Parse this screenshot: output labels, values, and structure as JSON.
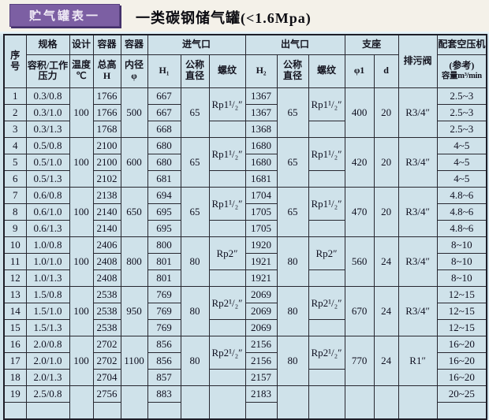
{
  "title_bar": {
    "badge": "贮气罐表一",
    "title": "一类碳钢储气罐(<1.6Mpa)"
  },
  "colors": {
    "badge_bg": "#7c5fa3",
    "badge_shadow": "#43306a",
    "title_band_bg": "#f4f1e9",
    "table_bg": "#cfe2ea",
    "grid_border": "#272730",
    "text": "#14141f"
  },
  "header": {
    "seq_l1": "序",
    "seq_l2": "号",
    "spec_group": "规格",
    "spec_sub": "容积/工作压力",
    "design_group": "设计",
    "design_sub_l1": "温度",
    "design_sub_l2": "℃",
    "vessel_height_group": "容器",
    "vessel_height_sub_l1": "总高",
    "vessel_height_sub_l2": "H",
    "vessel_dia_group": "容器",
    "vessel_dia_sub_l1": "内径",
    "vessel_dia_sub_l2": "φ",
    "inlet_group": "进气口",
    "outlet_group": "出气口",
    "support_group": "支座",
    "inlet_h1": "H₁",
    "outlet_h2": "H₂",
    "nominal_dia_l1": "公称",
    "nominal_dia_l2": "直径",
    "thread": "螺纹",
    "support_phi1": "φ1",
    "support_d": "d",
    "drain_valve": "排污阀",
    "compressor_l1": "配套空压机",
    "compressor_l2": "(参考)",
    "compressor_l3": "容量m³/min"
  },
  "table": {
    "rows": [
      {
        "cells": [
          {
            "v": "1",
            "n": "seq"
          },
          {
            "v": "0.3/0.8",
            "n": "spec"
          },
          {
            "v": "100",
            "rs": 3,
            "n": "design-temp"
          },
          {
            "v": "1766",
            "n": "total-height"
          },
          {
            "v": "500",
            "rs": 3,
            "n": "inner-dia"
          },
          {
            "v": "667",
            "n": "inlet-h1"
          },
          {
            "v": "65",
            "rs": 3,
            "n": "inlet-nominal-dia"
          },
          {
            "v": "Rp1¹/₂″",
            "rs": 2,
            "n": "inlet-thread"
          },
          {
            "v": "1367",
            "n": "outlet-h2"
          },
          {
            "v": "65",
            "rs": 3,
            "n": "outlet-nominal-dia"
          },
          {
            "v": "Rp1¹/₂″",
            "rs": 2,
            "n": "outlet-thread"
          },
          {
            "v": "400",
            "rs": 3,
            "n": "support-phi1"
          },
          {
            "v": "20",
            "rs": 3,
            "n": "support-d"
          },
          {
            "v": "R3/4″",
            "rs": 3,
            "n": "drain-valve"
          },
          {
            "v": "2.5~3",
            "n": "capacity"
          }
        ]
      },
      {
        "cells": [
          {
            "v": "2",
            "n": "seq"
          },
          {
            "v": "0.3/1.0",
            "n": "spec"
          },
          {
            "v": "1766",
            "n": "total-height"
          },
          {
            "v": "667",
            "n": "inlet-h1"
          },
          {
            "v": "1367",
            "n": "outlet-h2"
          },
          {
            "v": "2.5~3",
            "n": "capacity"
          }
        ]
      },
      {
        "cells": [
          {
            "v": "3",
            "n": "seq"
          },
          {
            "v": "0.3/1.3",
            "n": "spec"
          },
          {
            "v": "1768",
            "n": "total-height"
          },
          {
            "v": "668",
            "n": "inlet-h1"
          },
          {
            "v": "",
            "n": "inlet-thread"
          },
          {
            "v": "1368",
            "n": "outlet-h2"
          },
          {
            "v": "",
            "n": "outlet-thread"
          },
          {
            "v": "2.5~3",
            "n": "capacity"
          }
        ]
      },
      {
        "cells": [
          {
            "v": "4",
            "n": "seq"
          },
          {
            "v": "0.5/0.8",
            "n": "spec"
          },
          {
            "v": "100",
            "rs": 3,
            "n": "design-temp"
          },
          {
            "v": "2100",
            "n": "total-height"
          },
          {
            "v": "600",
            "rs": 3,
            "n": "inner-dia"
          },
          {
            "v": "680",
            "n": "inlet-h1"
          },
          {
            "v": "65",
            "rs": 3,
            "n": "inlet-nominal-dia"
          },
          {
            "v": "Rp1¹/₂″",
            "rs": 2,
            "n": "inlet-thread"
          },
          {
            "v": "1680",
            "n": "outlet-h2"
          },
          {
            "v": "65",
            "rs": 3,
            "n": "outlet-nominal-dia"
          },
          {
            "v": "Rp1¹/₂″",
            "rs": 2,
            "n": "outlet-thread"
          },
          {
            "v": "420",
            "rs": 3,
            "n": "support-phi1"
          },
          {
            "v": "20",
            "rs": 3,
            "n": "support-d"
          },
          {
            "v": "R3/4″",
            "rs": 3,
            "n": "drain-valve"
          },
          {
            "v": "4~5",
            "n": "capacity"
          }
        ]
      },
      {
        "cells": [
          {
            "v": "5",
            "n": "seq"
          },
          {
            "v": "0.5/1.0",
            "n": "spec"
          },
          {
            "v": "2100",
            "n": "total-height"
          },
          {
            "v": "680",
            "n": "inlet-h1"
          },
          {
            "v": "1680",
            "n": "outlet-h2"
          },
          {
            "v": "4~5",
            "n": "capacity"
          }
        ]
      },
      {
        "cells": [
          {
            "v": "6",
            "n": "seq"
          },
          {
            "v": "0.5/1.3",
            "n": "spec"
          },
          {
            "v": "2102",
            "n": "total-height"
          },
          {
            "v": "681",
            "n": "inlet-h1"
          },
          {
            "v": "",
            "n": "inlet-thread"
          },
          {
            "v": "1681",
            "n": "outlet-h2"
          },
          {
            "v": "",
            "n": "outlet-thread"
          },
          {
            "v": "4~5",
            "n": "capacity"
          }
        ]
      },
      {
        "cells": [
          {
            "v": "7",
            "n": "seq"
          },
          {
            "v": "0.6/0.8",
            "n": "spec"
          },
          {
            "v": "100",
            "rs": 3,
            "n": "design-temp"
          },
          {
            "v": "2138",
            "n": "total-height"
          },
          {
            "v": "650",
            "rs": 3,
            "n": "inner-dia"
          },
          {
            "v": "694",
            "n": "inlet-h1"
          },
          {
            "v": "65",
            "rs": 3,
            "n": "inlet-nominal-dia"
          },
          {
            "v": "Rp1¹/₂″",
            "rs": 2,
            "n": "inlet-thread"
          },
          {
            "v": "1704",
            "n": "outlet-h2"
          },
          {
            "v": "65",
            "rs": 3,
            "n": "outlet-nominal-dia"
          },
          {
            "v": "Rp1¹/₂″",
            "rs": 2,
            "n": "outlet-thread"
          },
          {
            "v": "470",
            "rs": 3,
            "n": "support-phi1"
          },
          {
            "v": "20",
            "rs": 3,
            "n": "support-d"
          },
          {
            "v": "R3/4″",
            "rs": 3,
            "n": "drain-valve"
          },
          {
            "v": "4.8~6",
            "n": "capacity"
          }
        ]
      },
      {
        "cells": [
          {
            "v": "8",
            "n": "seq"
          },
          {
            "v": "0.6/1.0",
            "n": "spec"
          },
          {
            "v": "2140",
            "n": "total-height"
          },
          {
            "v": "695",
            "n": "inlet-h1"
          },
          {
            "v": "1705",
            "n": "outlet-h2"
          },
          {
            "v": "4.8~6",
            "n": "capacity"
          }
        ]
      },
      {
        "cells": [
          {
            "v": "9",
            "n": "seq"
          },
          {
            "v": "0.6/1.3",
            "n": "spec"
          },
          {
            "v": "2140",
            "n": "total-height"
          },
          {
            "v": "695",
            "n": "inlet-h1"
          },
          {
            "v": "",
            "n": "inlet-thread"
          },
          {
            "v": "1705",
            "n": "outlet-h2"
          },
          {
            "v": "",
            "n": "outlet-thread"
          },
          {
            "v": "4.8~6",
            "n": "capacity"
          }
        ]
      },
      {
        "cells": [
          {
            "v": "10",
            "n": "seq"
          },
          {
            "v": "1.0/0.8",
            "n": "spec"
          },
          {
            "v": "100",
            "rs": 3,
            "n": "design-temp"
          },
          {
            "v": "2406",
            "n": "total-height"
          },
          {
            "v": "800",
            "rs": 3,
            "n": "inner-dia"
          },
          {
            "v": "800",
            "n": "inlet-h1"
          },
          {
            "v": "80",
            "rs": 3,
            "n": "inlet-nominal-dia"
          },
          {
            "v": "Rp2″",
            "rs": 2,
            "n": "inlet-thread"
          },
          {
            "v": "1920",
            "n": "outlet-h2"
          },
          {
            "v": "80",
            "rs": 3,
            "n": "outlet-nominal-dia"
          },
          {
            "v": "Rp2″",
            "rs": 2,
            "n": "outlet-thread"
          },
          {
            "v": "560",
            "rs": 3,
            "n": "support-phi1"
          },
          {
            "v": "24",
            "rs": 3,
            "n": "support-d"
          },
          {
            "v": "R3/4″",
            "rs": 3,
            "n": "drain-valve"
          },
          {
            "v": "8~10",
            "n": "capacity"
          }
        ]
      },
      {
        "cells": [
          {
            "v": "11",
            "n": "seq"
          },
          {
            "v": "1.0/1.0",
            "n": "spec"
          },
          {
            "v": "2408",
            "n": "total-height"
          },
          {
            "v": "801",
            "n": "inlet-h1"
          },
          {
            "v": "1921",
            "n": "outlet-h2"
          },
          {
            "v": "8~10",
            "n": "capacity"
          }
        ]
      },
      {
        "cells": [
          {
            "v": "12",
            "n": "seq"
          },
          {
            "v": "1.0/1.3",
            "n": "spec"
          },
          {
            "v": "2408",
            "n": "total-height"
          },
          {
            "v": "801",
            "n": "inlet-h1"
          },
          {
            "v": "",
            "n": "inlet-thread"
          },
          {
            "v": "1921",
            "n": "outlet-h2"
          },
          {
            "v": "",
            "n": "outlet-thread"
          },
          {
            "v": "8~10",
            "n": "capacity"
          }
        ]
      },
      {
        "cells": [
          {
            "v": "13",
            "n": "seq"
          },
          {
            "v": "1.5/0.8",
            "n": "spec"
          },
          {
            "v": "100",
            "rs": 3,
            "n": "design-temp"
          },
          {
            "v": "2538",
            "n": "total-height"
          },
          {
            "v": "950",
            "rs": 3,
            "n": "inner-dia"
          },
          {
            "v": "769",
            "n": "inlet-h1"
          },
          {
            "v": "80",
            "rs": 3,
            "n": "inlet-nominal-dia"
          },
          {
            "v": "Rp2¹/₂″",
            "rs": 2,
            "n": "inlet-thread"
          },
          {
            "v": "2069",
            "n": "outlet-h2"
          },
          {
            "v": "80",
            "rs": 3,
            "n": "outlet-nominal-dia"
          },
          {
            "v": "Rp2¹/₂″",
            "rs": 2,
            "n": "outlet-thread"
          },
          {
            "v": "670",
            "rs": 3,
            "n": "support-phi1"
          },
          {
            "v": "24",
            "rs": 3,
            "n": "support-d"
          },
          {
            "v": "R3/4″",
            "rs": 3,
            "n": "drain-valve"
          },
          {
            "v": "12~15",
            "n": "capacity"
          }
        ]
      },
      {
        "cells": [
          {
            "v": "14",
            "n": "seq"
          },
          {
            "v": "1.5/1.0",
            "n": "spec"
          },
          {
            "v": "2538",
            "n": "total-height"
          },
          {
            "v": "769",
            "n": "inlet-h1"
          },
          {
            "v": "2069",
            "n": "outlet-h2"
          },
          {
            "v": "12~15",
            "n": "capacity"
          }
        ]
      },
      {
        "cells": [
          {
            "v": "15",
            "n": "seq"
          },
          {
            "v": "1.5/1.3",
            "n": "spec"
          },
          {
            "v": "2538",
            "n": "total-height"
          },
          {
            "v": "769",
            "n": "inlet-h1"
          },
          {
            "v": "",
            "n": "inlet-thread"
          },
          {
            "v": "2069",
            "n": "outlet-h2"
          },
          {
            "v": "",
            "n": "outlet-thread"
          },
          {
            "v": "12~15",
            "n": "capacity"
          }
        ]
      },
      {
        "cells": [
          {
            "v": "16",
            "n": "seq"
          },
          {
            "v": "2.0/0.8",
            "n": "spec"
          },
          {
            "v": "100",
            "rs": 3,
            "n": "design-temp"
          },
          {
            "v": "2702",
            "n": "total-height"
          },
          {
            "v": "1100",
            "rs": 3,
            "n": "inner-dia"
          },
          {
            "v": "856",
            "n": "inlet-h1"
          },
          {
            "v": "80",
            "rs": 3,
            "n": "inlet-nominal-dia"
          },
          {
            "v": "Rp2¹/₂″",
            "rs": 2,
            "n": "inlet-thread"
          },
          {
            "v": "2156",
            "n": "outlet-h2"
          },
          {
            "v": "80",
            "rs": 3,
            "n": "outlet-nominal-dia"
          },
          {
            "v": "Rp2¹/₂″",
            "rs": 2,
            "n": "outlet-thread"
          },
          {
            "v": "770",
            "rs": 3,
            "n": "support-phi1"
          },
          {
            "v": "24",
            "rs": 3,
            "n": "support-d"
          },
          {
            "v": "R1″",
            "rs": 3,
            "n": "drain-valve"
          },
          {
            "v": "16~20",
            "n": "capacity"
          }
        ]
      },
      {
        "cells": [
          {
            "v": "17",
            "n": "seq"
          },
          {
            "v": "2.0/1.0",
            "n": "spec"
          },
          {
            "v": "2702",
            "n": "total-height"
          },
          {
            "v": "856",
            "n": "inlet-h1"
          },
          {
            "v": "2156",
            "n": "outlet-h2"
          },
          {
            "v": "16~20",
            "n": "capacity"
          }
        ]
      },
      {
        "cells": [
          {
            "v": "18",
            "n": "seq"
          },
          {
            "v": "2.0/1.3",
            "n": "spec"
          },
          {
            "v": "2704",
            "n": "total-height"
          },
          {
            "v": "857",
            "n": "inlet-h1"
          },
          {
            "v": "",
            "n": "inlet-thread"
          },
          {
            "v": "2157",
            "n": "outlet-h2"
          },
          {
            "v": "",
            "n": "outlet-thread"
          },
          {
            "v": "16~20",
            "n": "capacity"
          }
        ]
      },
      {
        "cells": [
          {
            "v": "19",
            "n": "seq"
          },
          {
            "v": "2.5/0.8",
            "n": "spec"
          },
          {
            "v": "",
            "rs": 2,
            "n": "design-temp"
          },
          {
            "v": "2756",
            "n": "total-height"
          },
          {
            "v": "",
            "rs": 2,
            "n": "inner-dia"
          },
          {
            "v": "883",
            "n": "inlet-h1"
          },
          {
            "v": "",
            "rs": 2,
            "n": "inlet-nominal-dia"
          },
          {
            "v": "",
            "rs": 2,
            "n": "inlet-thread"
          },
          {
            "v": "2183",
            "n": "outlet-h2"
          },
          {
            "v": "",
            "rs": 2,
            "n": "outlet-nominal-dia"
          },
          {
            "v": "",
            "rs": 2,
            "n": "outlet-thread"
          },
          {
            "v": "",
            "rs": 2,
            "n": "support-phi1"
          },
          {
            "v": "",
            "rs": 2,
            "n": "support-d"
          },
          {
            "v": "",
            "rs": 2,
            "n": "drain-valve"
          },
          {
            "v": "20~25",
            "n": "capacity"
          }
        ]
      },
      {
        "cells": [
          {
            "v": "",
            "n": "seq"
          },
          {
            "v": "",
            "n": "spec"
          },
          {
            "v": "",
            "n": "total-height"
          },
          {
            "v": "",
            "n": "inlet-h1"
          },
          {
            "v": "",
            "n": "outlet-h2"
          },
          {
            "v": "",
            "n": "capacity"
          }
        ]
      }
    ]
  }
}
